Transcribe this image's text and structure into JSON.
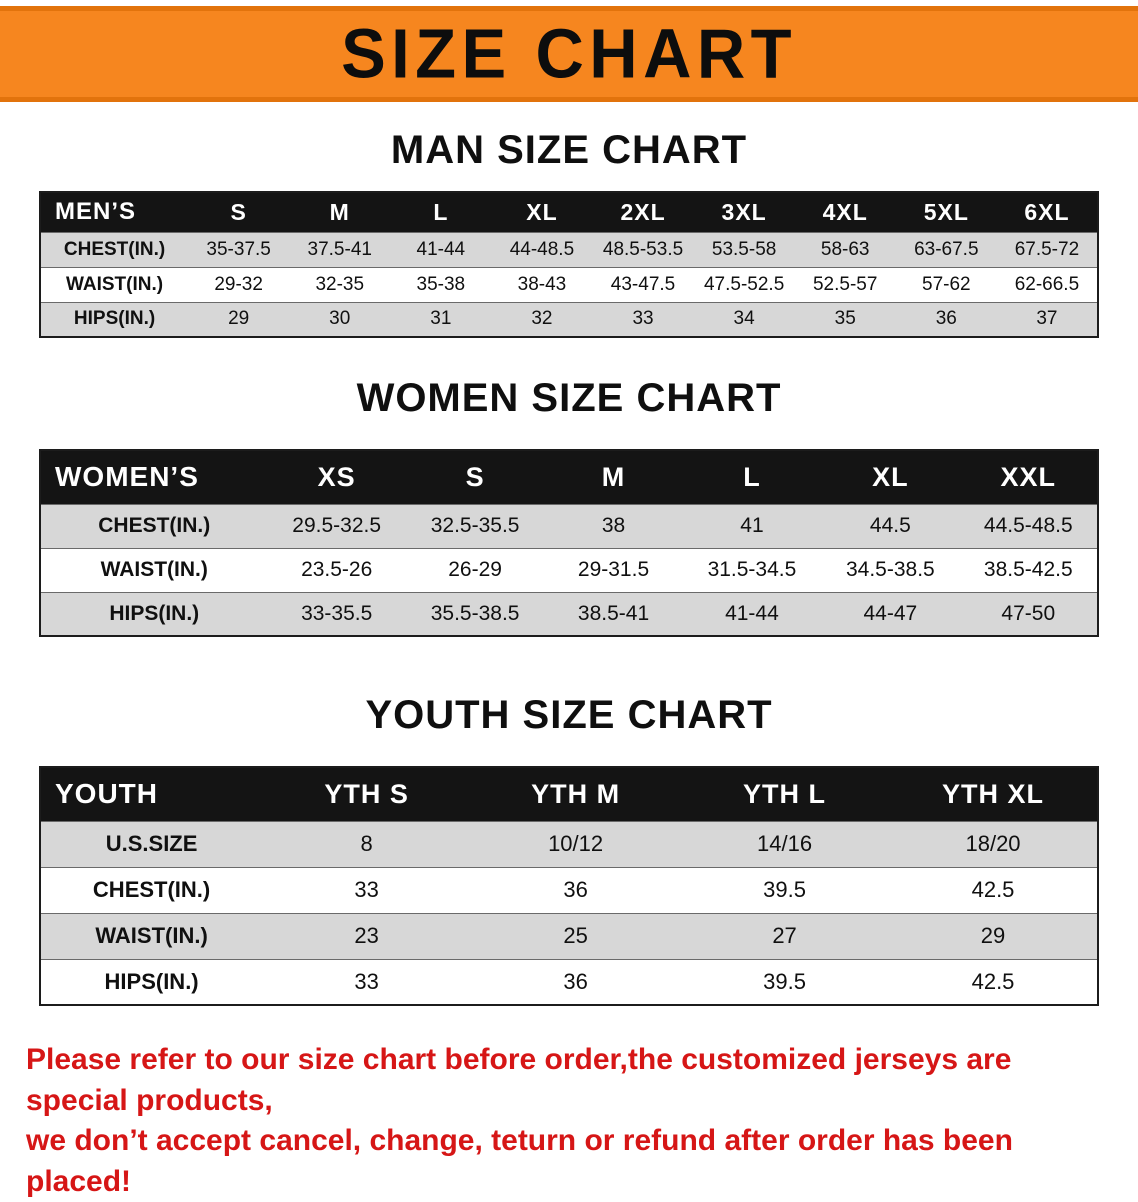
{
  "banner": {
    "title": "SIZE CHART"
  },
  "colors": {
    "banner_orange": "#f6861f",
    "header_black": "#141414",
    "row_gray": "#d7d7d7",
    "disclaimer_red": "#d61616"
  },
  "sections": [
    {
      "id": "men",
      "heading": "MAN SIZE CHART",
      "table": {
        "header": [
          "MEN’S",
          "S",
          "M",
          "L",
          "XL",
          "2XL",
          "3XL",
          "4XL",
          "5XL",
          "6XL"
        ],
        "rows": [
          [
            "CHEST(IN.)",
            "35-37.5",
            "37.5-41",
            "41-44",
            "44-48.5",
            "48.5-53.5",
            "53.5-58",
            "58-63",
            "63-67.5",
            "67.5-72"
          ],
          [
            "WAIST(IN.)",
            "29-32",
            "32-35",
            "35-38",
            "38-43",
            "43-47.5",
            "47.5-52.5",
            "52.5-57",
            "57-62",
            "62-66.5"
          ],
          [
            "HIPS(IN.)",
            "29",
            "30",
            "31",
            "32",
            "33",
            "34",
            "35",
            "36",
            "37"
          ]
        ]
      }
    },
    {
      "id": "women",
      "heading": "WOMEN SIZE CHART",
      "table": {
        "header": [
          "WOMEN’S",
          "XS",
          "S",
          "M",
          "L",
          "XL",
          "XXL"
        ],
        "rows": [
          [
            "CHEST(IN.)",
            "29.5-32.5",
            "32.5-35.5",
            "38",
            "41",
            "44.5",
            "44.5-48.5"
          ],
          [
            "WAIST(IN.)",
            "23.5-26",
            "26-29",
            "29-31.5",
            "31.5-34.5",
            "34.5-38.5",
            "38.5-42.5"
          ],
          [
            "HIPS(IN.)",
            "33-35.5",
            "35.5-38.5",
            "38.5-41",
            "41-44",
            "44-47",
            "47-50"
          ]
        ]
      }
    },
    {
      "id": "youth",
      "heading": "YOUTH SIZE CHART",
      "table": {
        "header": [
          "YOUTH",
          "YTH S",
          "YTH M",
          "YTH L",
          "YTH XL"
        ],
        "rows": [
          [
            "U.S.SIZE",
            "8",
            "10/12",
            "14/16",
            "18/20"
          ],
          [
            "CHEST(IN.)",
            "33",
            "36",
            "39.5",
            "42.5"
          ],
          [
            "WAIST(IN.)",
            "23",
            "25",
            "27",
            "29"
          ],
          [
            "HIPS(IN.)",
            "33",
            "36",
            "39.5",
            "42.5"
          ]
        ]
      }
    }
  ],
  "disclaimer": {
    "lines": [
      "Please refer to our size chart before order,the customized jerseys are special products,",
      "we don’t accept cancel, change, teturn or refund after order has been placed!"
    ]
  }
}
